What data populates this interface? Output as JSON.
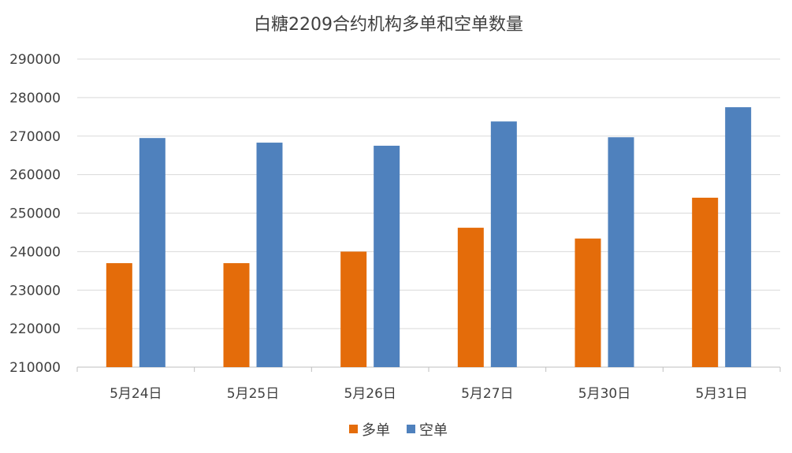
{
  "chart_data": {
    "type": "bar",
    "title": "白糖2209合约机构多单和空单数量",
    "xlabel": "",
    "ylabel": "",
    "categories": [
      "5月24日",
      "5月25日",
      "5月26日",
      "5月27日",
      "5月30日",
      "5月31日"
    ],
    "series": [
      {
        "name": "多单",
        "color": "#E46C0A",
        "values": [
          237000,
          237000,
          240000,
          246200,
          243400,
          254000
        ]
      },
      {
        "name": "空单",
        "color": "#4F81BD",
        "values": [
          269500,
          268300,
          267500,
          273800,
          269700,
          277500
        ]
      }
    ],
    "ylim": [
      210000,
      290000
    ],
    "yticks": [
      "210000",
      "220000",
      "230000",
      "240000",
      "250000",
      "260000",
      "270000",
      "280000",
      "290000"
    ],
    "grid": true,
    "legend_position": "bottom"
  }
}
